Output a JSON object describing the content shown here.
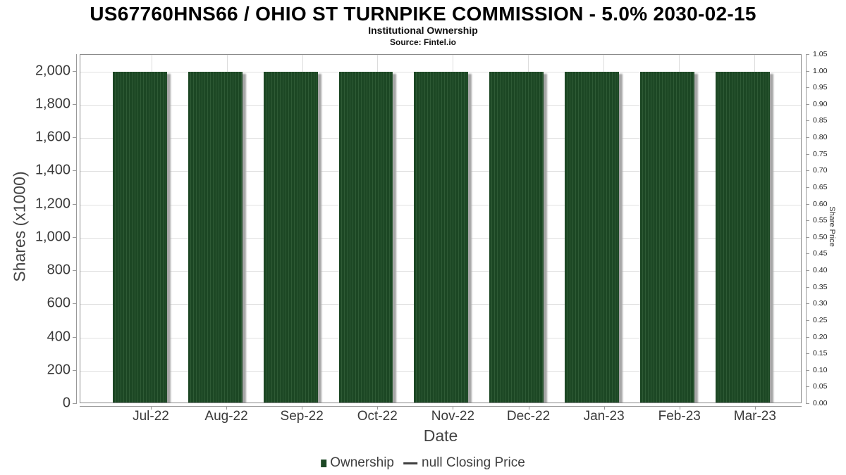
{
  "chart_data": {
    "type": "bar",
    "title": "US67760HNS66 / OHIO ST TURNPIKE COMMISSION - 5.0% 2030-02-15",
    "subtitle": "Institutional Ownership",
    "source": "Source: Fintel.io",
    "xlabel": "Date",
    "ylabel": "Shares (x1000)",
    "y2label": "Share Price",
    "categories": [
      "Jul-22",
      "Aug-22",
      "Sep-22",
      "Oct-22",
      "Nov-22",
      "Dec-22",
      "Jan-23",
      "Feb-23",
      "Mar-23"
    ],
    "series": [
      {
        "name": "Ownership",
        "values": [
          2000,
          2000,
          2000,
          2000,
          2000,
          2000,
          2000,
          2000,
          2000
        ],
        "color": "#1c4724"
      },
      {
        "name": "null Closing Price",
        "values": [],
        "color": "#3f3f3f"
      }
    ],
    "y_axis": {
      "label": "Shares (x1000)",
      "min": 0,
      "max": 2100,
      "tick_labels": [
        "0",
        "200",
        "400",
        "600",
        "800",
        "1,000",
        "1,200",
        "1,400",
        "1,600",
        "1,800",
        "2,000"
      ],
      "tick_values": [
        0,
        200,
        400,
        600,
        800,
        1000,
        1200,
        1400,
        1600,
        1800,
        2000
      ]
    },
    "y2_axis": {
      "label": "Share Price",
      "min": 0,
      "max": 1.05,
      "tick_labels": [
        "0.00",
        "0.05",
        "0.10",
        "0.15",
        "0.20",
        "0.25",
        "0.30",
        "0.35",
        "0.40",
        "0.45",
        "0.50",
        "0.55",
        "0.60",
        "0.65",
        "0.70",
        "0.75",
        "0.80",
        "0.85",
        "0.90",
        "0.95",
        "1.00",
        "1.05"
      ],
      "tick_values": [
        0,
        0.05,
        0.1,
        0.15,
        0.2,
        0.25,
        0.3,
        0.35,
        0.4,
        0.45,
        0.5,
        0.55,
        0.6,
        0.65,
        0.7,
        0.75,
        0.8,
        0.85,
        0.9,
        0.95,
        1.0,
        1.05
      ]
    },
    "grid": true,
    "legend": {
      "position": "bottom-center",
      "items": [
        {
          "label": "Ownership",
          "marker": "square",
          "color": "#1c4724"
        },
        {
          "label": "null Closing Price",
          "marker": "line",
          "color": "#3f3f3f"
        }
      ]
    },
    "colors": {
      "bar_fill": "#1c4724",
      "bar_stripe": "#2e5a35",
      "bar_shadow": "#a6a6a6",
      "gridline": "#e0e0e0",
      "plot_border": "#8a8a8a",
      "axis_text": "#3a3a3a",
      "title_text": "#000000"
    }
  }
}
